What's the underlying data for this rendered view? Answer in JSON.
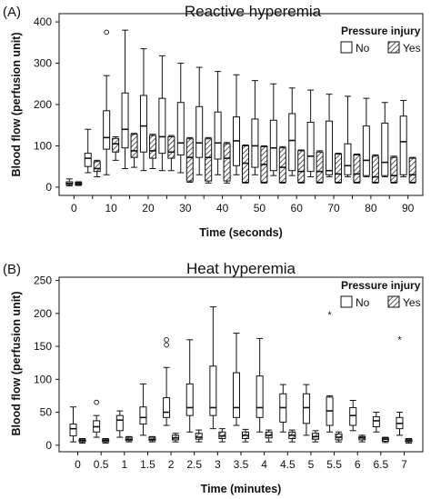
{
  "figure": {
    "panels": [
      {
        "letter": "(A)",
        "title": "Reactive hyperemia"
      },
      {
        "letter": "(B)",
        "title": "Heat hyperemia"
      }
    ]
  },
  "legend": {
    "title": "Pressure injury",
    "items": [
      "No",
      "Yes"
    ]
  },
  "colors": {
    "box_fill": "#ffffff",
    "stroke": "#111111",
    "hatch": "#333333"
  },
  "chart_data": [
    {
      "type": "boxplot",
      "title": "Reactive hyperemia",
      "xlabel": "Time (seconds)",
      "ylabel": "Blood flow (perfusion unit)",
      "ylim": [
        -20,
        420
      ],
      "yticks": [
        0,
        100,
        200,
        300,
        400
      ],
      "categories": [
        "0",
        "5",
        "10",
        "15",
        "20",
        "25",
        "30",
        "35",
        "40",
        "45",
        "50",
        "55",
        "60",
        "65",
        "70",
        "75",
        "80",
        "85",
        "90"
      ],
      "category_labels": [
        "0",
        "",
        "10",
        "",
        "20",
        "",
        "30",
        "",
        "40",
        "",
        "50",
        "",
        "60",
        "",
        "70",
        "",
        "80",
        "",
        "90"
      ],
      "grid": false,
      "legend_position": "top-right",
      "series": [
        {
          "name": "No",
          "boxes": [
            {
              "min": 3,
              "q1": 6,
              "median": 9,
              "q3": 13,
              "max": 20
            },
            {
              "min": 35,
              "q1": 50,
              "median": 70,
              "q3": 82,
              "max": 140
            },
            {
              "min": 30,
              "q1": 92,
              "median": 120,
              "q3": 185,
              "max": 270,
              "outliers": [
                375
              ]
            },
            {
              "min": 45,
              "q1": 95,
              "median": 140,
              "q3": 228,
              "max": 380
            },
            {
              "min": 40,
              "q1": 85,
              "median": 148,
              "q3": 222,
              "max": 335
            },
            {
              "min": 40,
              "q1": 82,
              "median": 122,
              "q3": 215,
              "max": 318
            },
            {
              "min": 35,
              "q1": 78,
              "median": 107,
              "q3": 205,
              "max": 300
            },
            {
              "min": 30,
              "q1": 72,
              "median": 107,
              "q3": 195,
              "max": 290
            },
            {
              "min": 30,
              "q1": 68,
              "median": 107,
              "q3": 182,
              "max": 280
            },
            {
              "min": 30,
              "q1": 52,
              "median": 112,
              "q3": 170,
              "max": 272
            },
            {
              "min": 30,
              "q1": 48,
              "median": 100,
              "q3": 165,
              "max": 258
            },
            {
              "min": 28,
              "q1": 40,
              "median": 95,
              "q3": 162,
              "max": 250
            },
            {
              "min": 28,
              "q1": 40,
              "median": 113,
              "q3": 178,
              "max": 240
            },
            {
              "min": 25,
              "q1": 38,
              "median": 75,
              "q3": 157,
              "max": 235
            },
            {
              "min": 25,
              "q1": 30,
              "median": 40,
              "q3": 160,
              "max": 225
            },
            {
              "min": 25,
              "q1": 30,
              "median": 52,
              "q3": 105,
              "max": 220
            },
            {
              "min": 25,
              "q1": 28,
              "median": 65,
              "q3": 148,
              "max": 215
            },
            {
              "min": 25,
              "q1": 28,
              "median": 60,
              "q3": 155,
              "max": 205
            },
            {
              "min": 25,
              "q1": 30,
              "median": 110,
              "q3": 172,
              "max": 210
            }
          ]
        },
        {
          "name": "Yes",
          "boxes": [
            {
              "min": 4,
              "q1": 6,
              "median": 8,
              "q3": 11,
              "max": 13
            },
            {
              "min": 25,
              "q1": 38,
              "median": 45,
              "q3": 62,
              "max": 65
            },
            {
              "min": 65,
              "q1": 85,
              "median": 105,
              "q3": 118,
              "max": 122
            },
            {
              "min": 48,
              "q1": 72,
              "median": 88,
              "q3": 128,
              "max": 130
            },
            {
              "min": 45,
              "q1": 70,
              "median": 88,
              "q3": 125,
              "max": 128
            },
            {
              "min": 40,
              "q1": 70,
              "median": 85,
              "q3": 122,
              "max": 125
            },
            {
              "min": 12,
              "q1": 15,
              "median": 72,
              "q3": 117,
              "max": 120
            },
            {
              "min": 10,
              "q1": 15,
              "median": 72,
              "q3": 117,
              "max": 120
            },
            {
              "min": 10,
              "q1": 15,
              "median": 70,
              "q3": 105,
              "max": 108
            },
            {
              "min": 10,
              "q1": 12,
              "median": 58,
              "q3": 100,
              "max": 102
            },
            {
              "min": 10,
              "q1": 12,
              "median": 55,
              "q3": 98,
              "max": 100
            },
            {
              "min": 10,
              "q1": 12,
              "median": 48,
              "q3": 95,
              "max": 98
            },
            {
              "min": 10,
              "q1": 12,
              "median": 38,
              "q3": 88,
              "max": 90
            },
            {
              "min": 10,
              "q1": 12,
              "median": 38,
              "q3": 85,
              "max": 88
            },
            {
              "min": 10,
              "q1": 12,
              "median": 32,
              "q3": 80,
              "max": 82
            },
            {
              "min": 10,
              "q1": 12,
              "median": 32,
              "q3": 78,
              "max": 80
            },
            {
              "min": 10,
              "q1": 12,
              "median": 25,
              "q3": 75,
              "max": 78
            },
            {
              "min": 10,
              "q1": 12,
              "median": 28,
              "q3": 72,
              "max": 75
            },
            {
              "min": 10,
              "q1": 12,
              "median": 30,
              "q3": 70,
              "max": 72
            }
          ]
        }
      ]
    },
    {
      "type": "boxplot",
      "title": "Heat hyperemia",
      "xlabel": "Time (minutes)",
      "ylabel": "Blood flow (perfusion unit)",
      "ylim": [
        -10,
        255
      ],
      "yticks": [
        0,
        50,
        100,
        150,
        200,
        250
      ],
      "categories": [
        "0",
        "0.5",
        "1",
        "1.5",
        "2",
        "2.5",
        "3",
        "3.5",
        "4",
        "4.5",
        "5",
        "5.5",
        "6",
        "6.5",
        "7"
      ],
      "category_labels": [
        "0",
        "0.5",
        "1",
        "1.5",
        "2",
        "2.5",
        "3",
        "3.5",
        "4",
        "4.5",
        "5",
        "5.5",
        "6",
        "6.5",
        "7"
      ],
      "grid": false,
      "legend_position": "top-right",
      "series": [
        {
          "name": "No",
          "boxes": [
            {
              "min": 5,
              "q1": 14,
              "median": 25,
              "q3": 32,
              "max": 58
            },
            {
              "min": 12,
              "q1": 20,
              "median": 28,
              "q3": 37,
              "max": 45,
              "outliers": [
                65
              ]
            },
            {
              "min": 12,
              "q1": 22,
              "median": 38,
              "q3": 45,
              "max": 52
            },
            {
              "min": 15,
              "q1": 32,
              "median": 42,
              "q3": 58,
              "max": 93
            },
            {
              "min": 30,
              "q1": 42,
              "median": 50,
              "q3": 72,
              "max": 118,
              "outliers": [
                152,
                160
              ]
            },
            {
              "min": 20,
              "q1": 45,
              "median": 57,
              "q3": 93,
              "max": 160
            },
            {
              "min": 25,
              "q1": 45,
              "median": 57,
              "q3": 120,
              "max": 210
            },
            {
              "min": 30,
              "q1": 42,
              "median": 57,
              "q3": 110,
              "max": 170
            },
            {
              "min": 20,
              "q1": 42,
              "median": 57,
              "q3": 105,
              "max": 162
            },
            {
              "min": 20,
              "q1": 35,
              "median": 57,
              "q3": 78,
              "max": 92
            },
            {
              "min": 15,
              "q1": 33,
              "median": 57,
              "q3": 78,
              "max": 92
            },
            {
              "min": 20,
              "q1": 30,
              "median": 52,
              "q3": 73,
              "max": 75,
              "outliers": [
                200
              ]
            },
            {
              "min": 22,
              "q1": 30,
              "median": 45,
              "q3": 57,
              "max": 68
            },
            {
              "min": 20,
              "q1": 28,
              "median": 37,
              "q3": 43,
              "max": 50
            },
            {
              "min": 15,
              "q1": 25,
              "median": 33,
              "q3": 42,
              "max": 50,
              "outliers": [
                162
              ]
            }
          ]
        },
        {
          "name": "Yes",
          "boxes": [
            {
              "min": 3,
              "q1": 5,
              "median": 7,
              "q3": 9,
              "max": 10
            },
            {
              "min": 3,
              "q1": 5,
              "median": 7,
              "q3": 9,
              "max": 10
            },
            {
              "min": 5,
              "q1": 7,
              "median": 9,
              "q3": 12,
              "max": 13
            },
            {
              "min": 5,
              "q1": 7,
              "median": 9,
              "q3": 12,
              "max": 13
            },
            {
              "min": 5,
              "q1": 8,
              "median": 11,
              "q3": 15,
              "max": 18
            },
            {
              "min": 5,
              "q1": 9,
              "median": 12,
              "q3": 18,
              "max": 23
            },
            {
              "min": 5,
              "q1": 10,
              "median": 14,
              "q3": 20,
              "max": 25
            },
            {
              "min": 5,
              "q1": 10,
              "median": 15,
              "q3": 20,
              "max": 24
            },
            {
              "min": 5,
              "q1": 11,
              "median": 15,
              "q3": 20,
              "max": 23
            },
            {
              "min": 5,
              "q1": 10,
              "median": 15,
              "q3": 20,
              "max": 23
            },
            {
              "min": 5,
              "q1": 9,
              "median": 13,
              "q3": 18,
              "max": 22
            },
            {
              "min": 5,
              "q1": 8,
              "median": 12,
              "q3": 17,
              "max": 20
            },
            {
              "min": 5,
              "q1": 8,
              "median": 11,
              "q3": 13,
              "max": 15
            },
            {
              "min": 4,
              "q1": 6,
              "median": 9,
              "q3": 11,
              "max": 12
            },
            {
              "min": 3,
              "q1": 5,
              "median": 7,
              "q3": 9,
              "max": 10
            }
          ]
        }
      ]
    }
  ]
}
